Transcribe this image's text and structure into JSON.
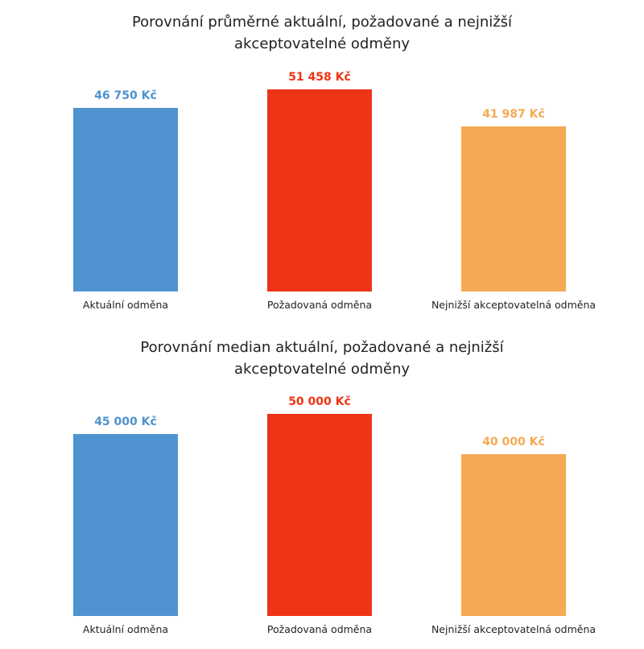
{
  "chart_data": [
    {
      "type": "bar",
      "title_lines": [
        "Porovnání průměrné aktuální, požadované a nejnižší",
        "akceptovatelné odměny"
      ],
      "categories": [
        "Aktuální odměna",
        "Požadovaná odměna",
        "Nejnižší akceptovatelná odměna"
      ],
      "values": [
        46750,
        51458,
        41987
      ],
      "value_labels": [
        "46 750 Kč",
        "51 458 Kč",
        "41 987 Kč"
      ],
      "colors": [
        "#4f94d0",
        "#ee3416",
        "#f5a954"
      ],
      "ylim": [
        0,
        51458
      ],
      "grid": false
    },
    {
      "type": "bar",
      "title_lines": [
        "Porovnání median aktuální, požadované a nejnižší",
        "akceptovatelné odměny"
      ],
      "categories": [
        "Aktuální odměna",
        "Požadovaná odměna",
        "Nejnižší akceptovatelná odměna"
      ],
      "values": [
        45000,
        50000,
        40000
      ],
      "value_labels": [
        "45 000 Kč",
        "50 000 Kč",
        "40 000 Kč"
      ],
      "colors": [
        "#4f94d0",
        "#ee3416",
        "#f5a954"
      ],
      "ylim": [
        0,
        50000
      ],
      "grid": false
    }
  ]
}
